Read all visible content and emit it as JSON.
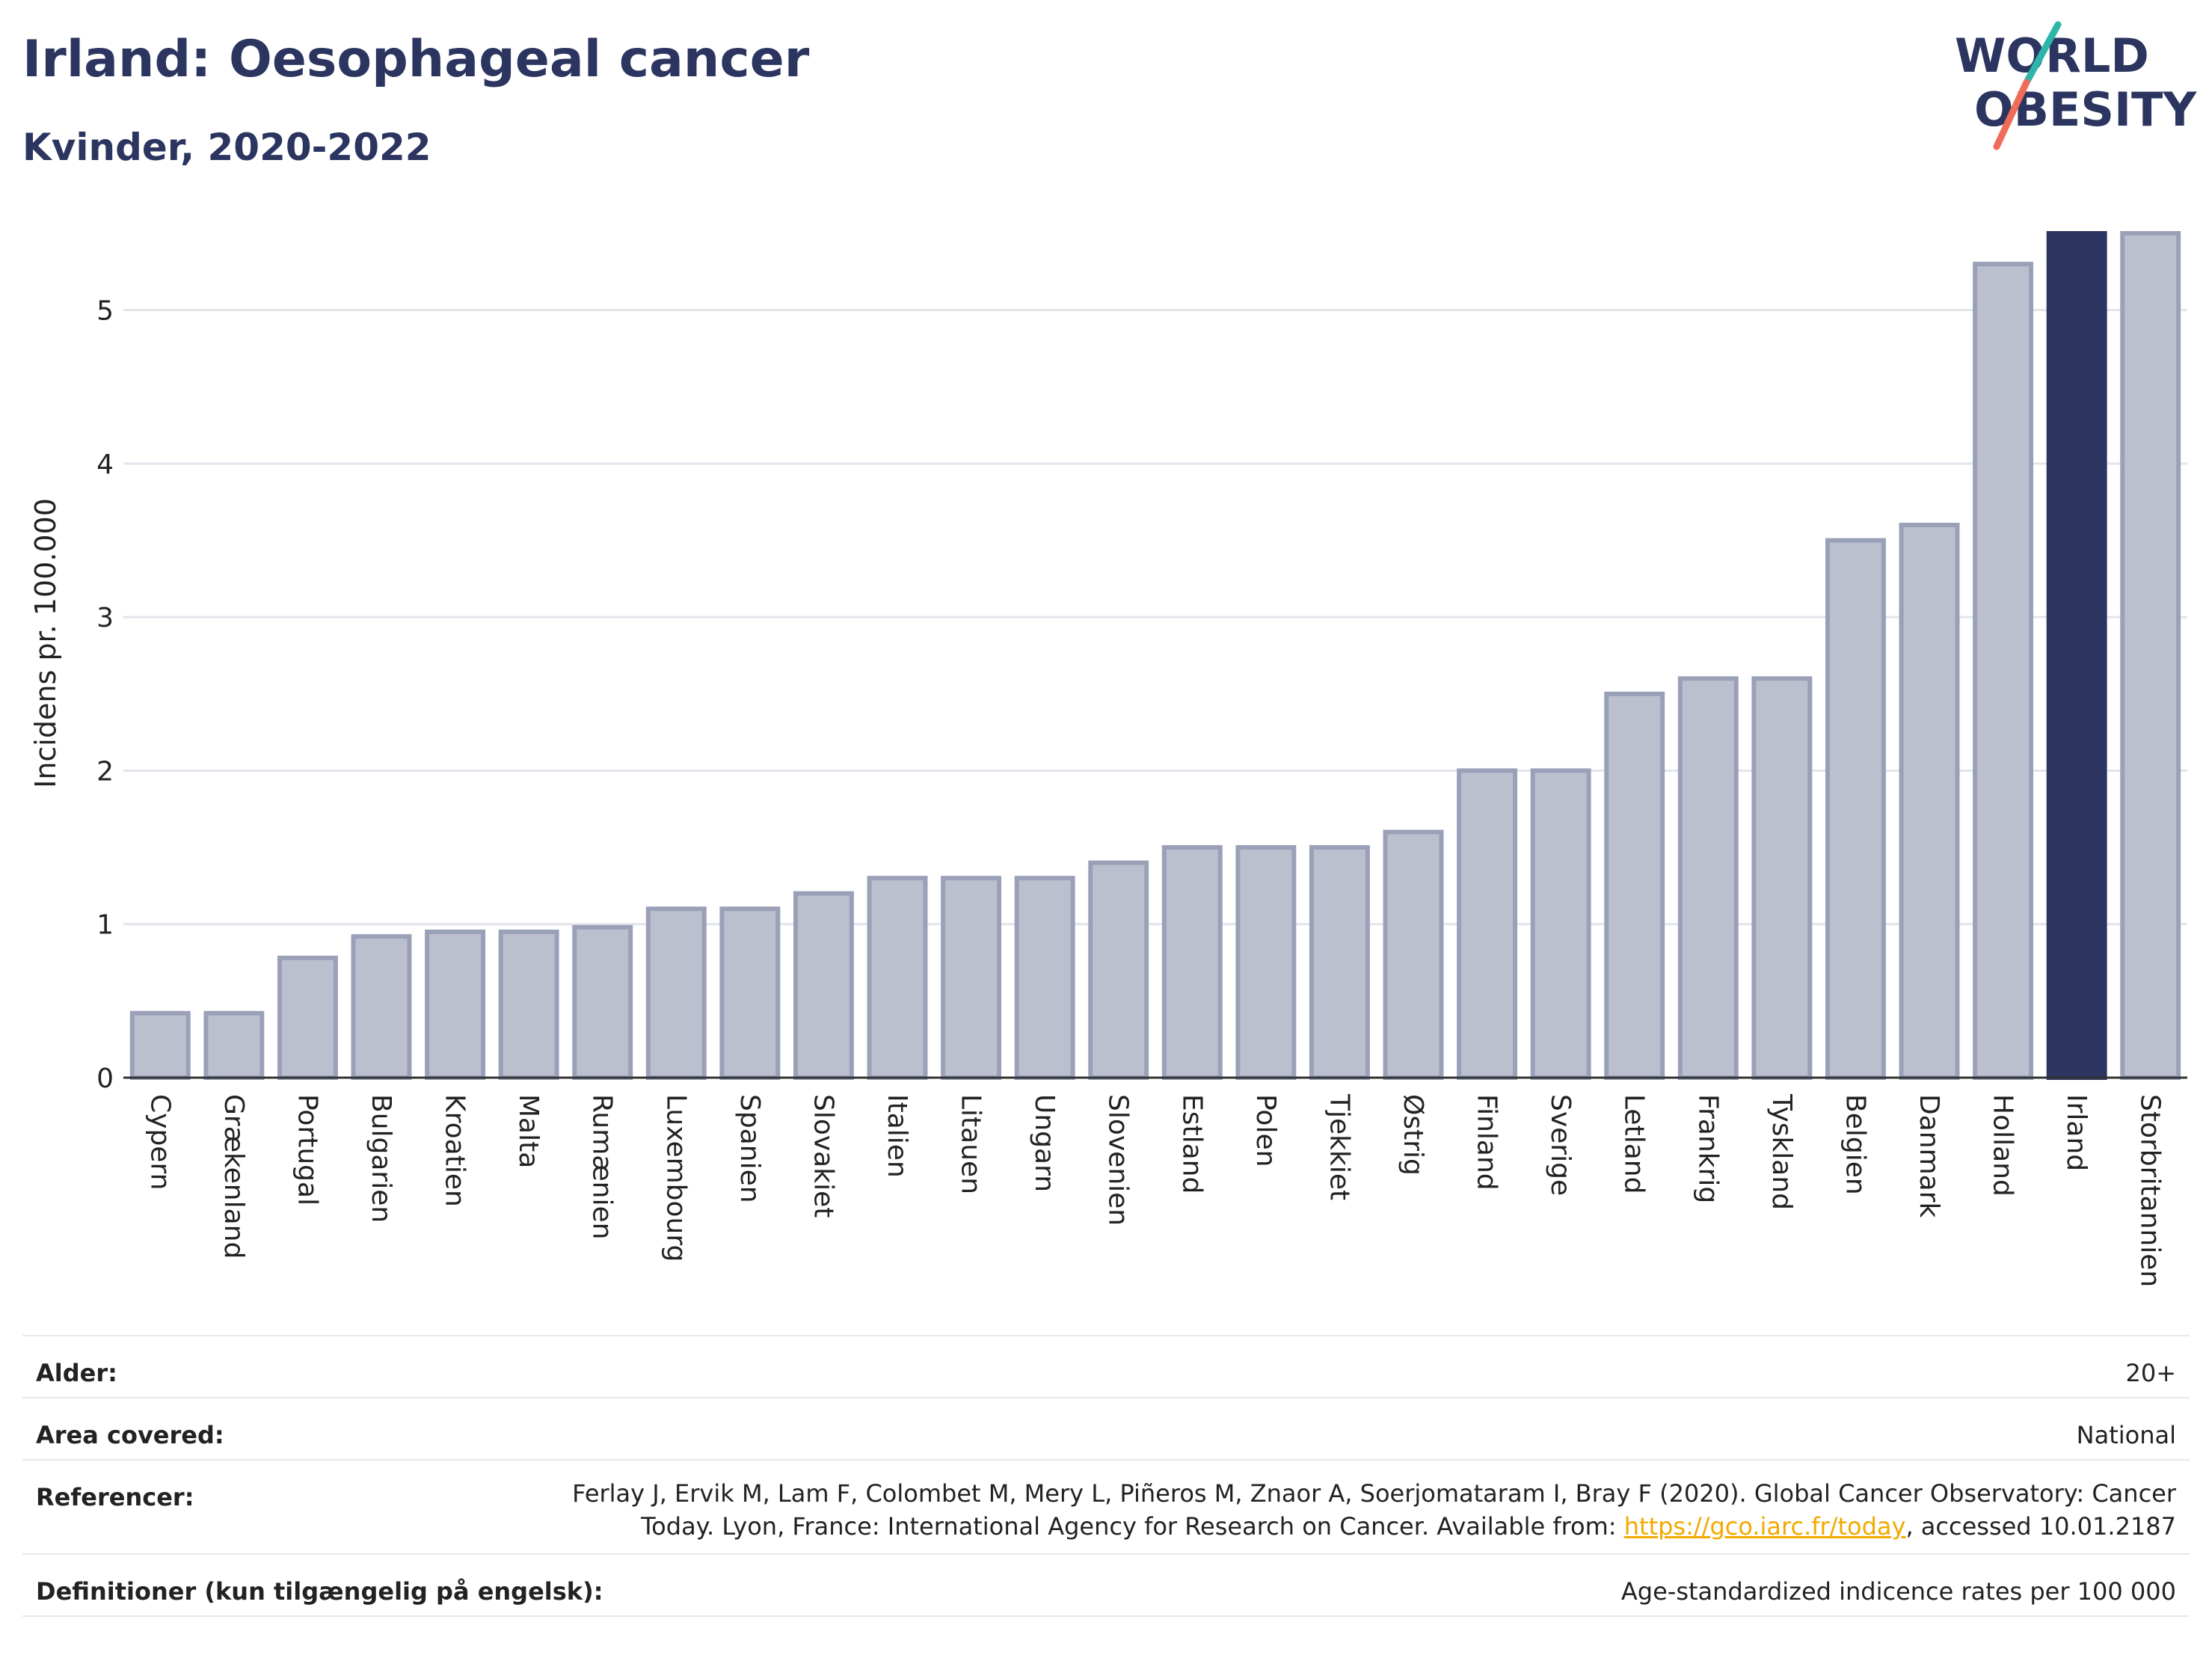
{
  "title": "Irland: Oesophageal cancer",
  "subtitle": "Kvinder, 2020-2022",
  "logo": {
    "line1": "WORLD",
    "line2": "OBESITY",
    "teal": "#2cb5a8",
    "coral": "#ef6b5a"
  },
  "colors": {
    "bar": "#bcc0ce",
    "bar_edge": "#9aa0b8",
    "highlight": "#2b3560",
    "grid": "#e3e5ec"
  },
  "chart_data": {
    "type": "bar",
    "title": "Irland: Oesophageal cancer",
    "subtitle": "Kvinder, 2020-2022",
    "xlabel": "",
    "ylabel": "Incidens pr. 100.000",
    "ylim": [
      0,
      5.5
    ],
    "yticks": [
      0,
      1,
      2,
      3,
      4,
      5
    ],
    "grid": true,
    "highlight": "Irland",
    "categories": [
      "Cypern",
      "Grækenland",
      "Portugal",
      "Bulgarien",
      "Kroatien",
      "Malta",
      "Rumænien",
      "Luxembourg",
      "Spanien",
      "Slovakiet",
      "Italien",
      "Litauen",
      "Ungarn",
      "Slovenien",
      "Estland",
      "Polen",
      "Tjekkiet",
      "Østrig",
      "Finland",
      "Sverige",
      "Letland",
      "Frankrig",
      "Tyskland",
      "Belgien",
      "Danmark",
      "Holland",
      "Irland",
      "Storbritannien"
    ],
    "values": [
      0.42,
      0.42,
      0.78,
      0.92,
      0.95,
      0.95,
      0.98,
      1.1,
      1.1,
      1.2,
      1.3,
      1.3,
      1.3,
      1.4,
      1.5,
      1.5,
      1.5,
      1.6,
      2.0,
      2.0,
      2.5,
      2.6,
      2.6,
      3.5,
      3.6,
      5.3,
      5.5,
      5.5
    ]
  },
  "footer": {
    "age_label": "Alder:",
    "age_value": "20+",
    "area_label": "Area covered:",
    "area_value": "National",
    "ref_label": "Referencer:",
    "ref_line1": "Ferlay J, Ervik M, Lam F, Colombet M, Mery L, Piñeros M, Znaor A, Soerjomataram I, Bray F (2020). Global Cancer Observatory: Cancer",
    "ref_line2_pre": "Today. Lyon, France: International Agency for Research on Cancer. Available from: ",
    "ref_link": "https://gco.iarc.fr/today",
    "ref_line2_post": ", accessed 10.01.2187",
    "def_label": "Definitioner (kun tilgængelig på engelsk):",
    "def_value": "Age-standardized indicence rates per 100 000"
  }
}
